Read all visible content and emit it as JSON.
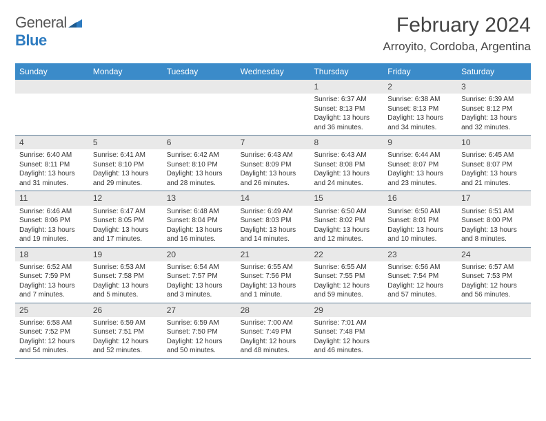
{
  "brand": {
    "part1": "General",
    "part2": "Blue"
  },
  "title": "February 2024",
  "location": "Arroyito, Cordoba, Argentina",
  "colors": {
    "header_bg": "#3b8bc9",
    "daynum_bg": "#e9e9e9",
    "week_border": "#5a7a95",
    "text": "#333333",
    "brand_blue": "#2d7bc0"
  },
  "dayNames": [
    "Sunday",
    "Monday",
    "Tuesday",
    "Wednesday",
    "Thursday",
    "Friday",
    "Saturday"
  ],
  "weeks": [
    [
      {
        "day": "",
        "empty": true
      },
      {
        "day": "",
        "empty": true
      },
      {
        "day": "",
        "empty": true
      },
      {
        "day": "",
        "empty": true
      },
      {
        "day": "1",
        "sunrise": "Sunrise: 6:37 AM",
        "sunset": "Sunset: 8:13 PM",
        "daylight": "Daylight: 13 hours and 36 minutes."
      },
      {
        "day": "2",
        "sunrise": "Sunrise: 6:38 AM",
        "sunset": "Sunset: 8:13 PM",
        "daylight": "Daylight: 13 hours and 34 minutes."
      },
      {
        "day": "3",
        "sunrise": "Sunrise: 6:39 AM",
        "sunset": "Sunset: 8:12 PM",
        "daylight": "Daylight: 13 hours and 32 minutes."
      }
    ],
    [
      {
        "day": "4",
        "sunrise": "Sunrise: 6:40 AM",
        "sunset": "Sunset: 8:11 PM",
        "daylight": "Daylight: 13 hours and 31 minutes."
      },
      {
        "day": "5",
        "sunrise": "Sunrise: 6:41 AM",
        "sunset": "Sunset: 8:10 PM",
        "daylight": "Daylight: 13 hours and 29 minutes."
      },
      {
        "day": "6",
        "sunrise": "Sunrise: 6:42 AM",
        "sunset": "Sunset: 8:10 PM",
        "daylight": "Daylight: 13 hours and 28 minutes."
      },
      {
        "day": "7",
        "sunrise": "Sunrise: 6:43 AM",
        "sunset": "Sunset: 8:09 PM",
        "daylight": "Daylight: 13 hours and 26 minutes."
      },
      {
        "day": "8",
        "sunrise": "Sunrise: 6:43 AM",
        "sunset": "Sunset: 8:08 PM",
        "daylight": "Daylight: 13 hours and 24 minutes."
      },
      {
        "day": "9",
        "sunrise": "Sunrise: 6:44 AM",
        "sunset": "Sunset: 8:07 PM",
        "daylight": "Daylight: 13 hours and 23 minutes."
      },
      {
        "day": "10",
        "sunrise": "Sunrise: 6:45 AM",
        "sunset": "Sunset: 8:07 PM",
        "daylight": "Daylight: 13 hours and 21 minutes."
      }
    ],
    [
      {
        "day": "11",
        "sunrise": "Sunrise: 6:46 AM",
        "sunset": "Sunset: 8:06 PM",
        "daylight": "Daylight: 13 hours and 19 minutes."
      },
      {
        "day": "12",
        "sunrise": "Sunrise: 6:47 AM",
        "sunset": "Sunset: 8:05 PM",
        "daylight": "Daylight: 13 hours and 17 minutes."
      },
      {
        "day": "13",
        "sunrise": "Sunrise: 6:48 AM",
        "sunset": "Sunset: 8:04 PM",
        "daylight": "Daylight: 13 hours and 16 minutes."
      },
      {
        "day": "14",
        "sunrise": "Sunrise: 6:49 AM",
        "sunset": "Sunset: 8:03 PM",
        "daylight": "Daylight: 13 hours and 14 minutes."
      },
      {
        "day": "15",
        "sunrise": "Sunrise: 6:50 AM",
        "sunset": "Sunset: 8:02 PM",
        "daylight": "Daylight: 13 hours and 12 minutes."
      },
      {
        "day": "16",
        "sunrise": "Sunrise: 6:50 AM",
        "sunset": "Sunset: 8:01 PM",
        "daylight": "Daylight: 13 hours and 10 minutes."
      },
      {
        "day": "17",
        "sunrise": "Sunrise: 6:51 AM",
        "sunset": "Sunset: 8:00 PM",
        "daylight": "Daylight: 13 hours and 8 minutes."
      }
    ],
    [
      {
        "day": "18",
        "sunrise": "Sunrise: 6:52 AM",
        "sunset": "Sunset: 7:59 PM",
        "daylight": "Daylight: 13 hours and 7 minutes."
      },
      {
        "day": "19",
        "sunrise": "Sunrise: 6:53 AM",
        "sunset": "Sunset: 7:58 PM",
        "daylight": "Daylight: 13 hours and 5 minutes."
      },
      {
        "day": "20",
        "sunrise": "Sunrise: 6:54 AM",
        "sunset": "Sunset: 7:57 PM",
        "daylight": "Daylight: 13 hours and 3 minutes."
      },
      {
        "day": "21",
        "sunrise": "Sunrise: 6:55 AM",
        "sunset": "Sunset: 7:56 PM",
        "daylight": "Daylight: 13 hours and 1 minute."
      },
      {
        "day": "22",
        "sunrise": "Sunrise: 6:55 AM",
        "sunset": "Sunset: 7:55 PM",
        "daylight": "Daylight: 12 hours and 59 minutes."
      },
      {
        "day": "23",
        "sunrise": "Sunrise: 6:56 AM",
        "sunset": "Sunset: 7:54 PM",
        "daylight": "Daylight: 12 hours and 57 minutes."
      },
      {
        "day": "24",
        "sunrise": "Sunrise: 6:57 AM",
        "sunset": "Sunset: 7:53 PM",
        "daylight": "Daylight: 12 hours and 56 minutes."
      }
    ],
    [
      {
        "day": "25",
        "sunrise": "Sunrise: 6:58 AM",
        "sunset": "Sunset: 7:52 PM",
        "daylight": "Daylight: 12 hours and 54 minutes."
      },
      {
        "day": "26",
        "sunrise": "Sunrise: 6:59 AM",
        "sunset": "Sunset: 7:51 PM",
        "daylight": "Daylight: 12 hours and 52 minutes."
      },
      {
        "day": "27",
        "sunrise": "Sunrise: 6:59 AM",
        "sunset": "Sunset: 7:50 PM",
        "daylight": "Daylight: 12 hours and 50 minutes."
      },
      {
        "day": "28",
        "sunrise": "Sunrise: 7:00 AM",
        "sunset": "Sunset: 7:49 PM",
        "daylight": "Daylight: 12 hours and 48 minutes."
      },
      {
        "day": "29",
        "sunrise": "Sunrise: 7:01 AM",
        "sunset": "Sunset: 7:48 PM",
        "daylight": "Daylight: 12 hours and 46 minutes."
      },
      {
        "day": "",
        "empty": true
      },
      {
        "day": "",
        "empty": true
      }
    ]
  ]
}
